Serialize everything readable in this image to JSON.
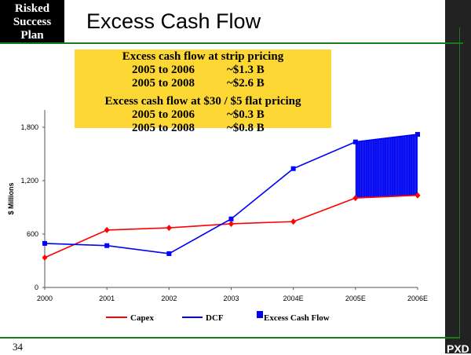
{
  "header": {
    "badge_lines": [
      "Risked",
      "Success",
      "Plan"
    ],
    "title": "Excess Cash Flow"
  },
  "callout": {
    "strip_heading": "Excess cash flow at strip pricing",
    "strip_rows": [
      {
        "period": "2005 to 2006",
        "value": "~$1.3 B"
      },
      {
        "period": "2005 to 2008",
        "value": "~$2.6 B"
      }
    ],
    "flat_heading": "Excess cash flow at $30 / $5 flat pricing",
    "flat_rows": [
      {
        "period": "2005 to 2006",
        "value": "~$0.3 B"
      },
      {
        "period": "2005 to 2008",
        "value": "~$0.8 B"
      }
    ]
  },
  "footer": {
    "page": "34",
    "logo": "PXD"
  },
  "chart_data": {
    "type": "line",
    "title": "Excess Cash Flow",
    "xlabel": "",
    "ylabel": "$ Millions",
    "categories": [
      "2000",
      "2001",
      "2002",
      "2003",
      "2004E",
      "2005E",
      "2006E"
    ],
    "ylim": [
      0,
      1800
    ],
    "yticks": [
      "0",
      "600",
      "1,200",
      "1,800"
    ],
    "ytick_values": [
      0,
      600,
      1200,
      1800
    ],
    "series": [
      {
        "name": "Capex",
        "color": "#ff0000",
        "marker": "diamond",
        "values": [
          335,
          645,
          670,
          715,
          740,
          1005,
          1035
        ]
      },
      {
        "name": "DCF",
        "color": "#0000ff",
        "marker": "square",
        "values": [
          495,
          470,
          380,
          770,
          1335,
          1635,
          1720
        ]
      }
    ],
    "area": {
      "name": "Excess Cash Flow",
      "color": "#0000ee",
      "from_category": "2005E",
      "to_category": "2006E"
    },
    "legend": "bottom",
    "grid": false
  }
}
